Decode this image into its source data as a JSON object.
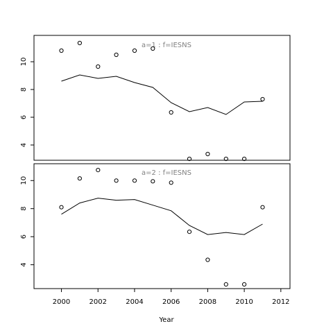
{
  "chart_data": {
    "type": "scatter",
    "xlabel": "Year",
    "x_ticks": [
      2000,
      2002,
      2004,
      2006,
      2008,
      2010,
      2012
    ],
    "xlim": [
      1998.5,
      2012.5
    ],
    "panels": [
      {
        "title": "a=1  :  f=IESNS",
        "ylim": [
          2.9,
          11.9
        ],
        "y_ticks": [
          4,
          6,
          8,
          10
        ],
        "points": {
          "x": [
            2000,
            2001,
            2002,
            2003,
            2004,
            2005,
            2006,
            2007,
            2008,
            2009,
            2010,
            2011
          ],
          "y": [
            10.8,
            11.35,
            9.65,
            10.5,
            10.8,
            10.95,
            6.35,
            3.0,
            3.35,
            3.0,
            3.0,
            7.3
          ]
        },
        "fitted": {
          "x": [
            2000,
            2001,
            2002,
            2003,
            2004,
            2005,
            2006,
            2007,
            2008,
            2009,
            2010,
            2011
          ],
          "y": [
            8.6,
            9.05,
            8.8,
            8.95,
            8.5,
            8.15,
            7.05,
            6.4,
            6.7,
            6.2,
            7.1,
            7.15
          ]
        }
      },
      {
        "title": "a=2  :  f=IESNS",
        "ylim": [
          2.3,
          11.2
        ],
        "y_ticks": [
          4,
          6,
          8,
          10
        ],
        "points": {
          "x": [
            2000,
            2001,
            2002,
            2003,
            2004,
            2005,
            2006,
            2007,
            2008,
            2009,
            2010,
            2011
          ],
          "y": [
            8.1,
            10.15,
            10.75,
            10.0,
            10.0,
            9.95,
            9.85,
            6.35,
            4.35,
            2.6,
            2.6,
            8.1
          ]
        },
        "fitted": {
          "x": [
            2000,
            2001,
            2002,
            2003,
            2004,
            2005,
            2006,
            2007,
            2008,
            2009,
            2010,
            2011
          ],
          "y": [
            7.6,
            8.4,
            8.75,
            8.6,
            8.65,
            8.25,
            7.85,
            6.8,
            6.15,
            6.3,
            6.15,
            6.9
          ]
        }
      }
    ],
    "colors": {
      "points": "#000000",
      "line": "#000000",
      "panel_title": "#808080"
    }
  }
}
